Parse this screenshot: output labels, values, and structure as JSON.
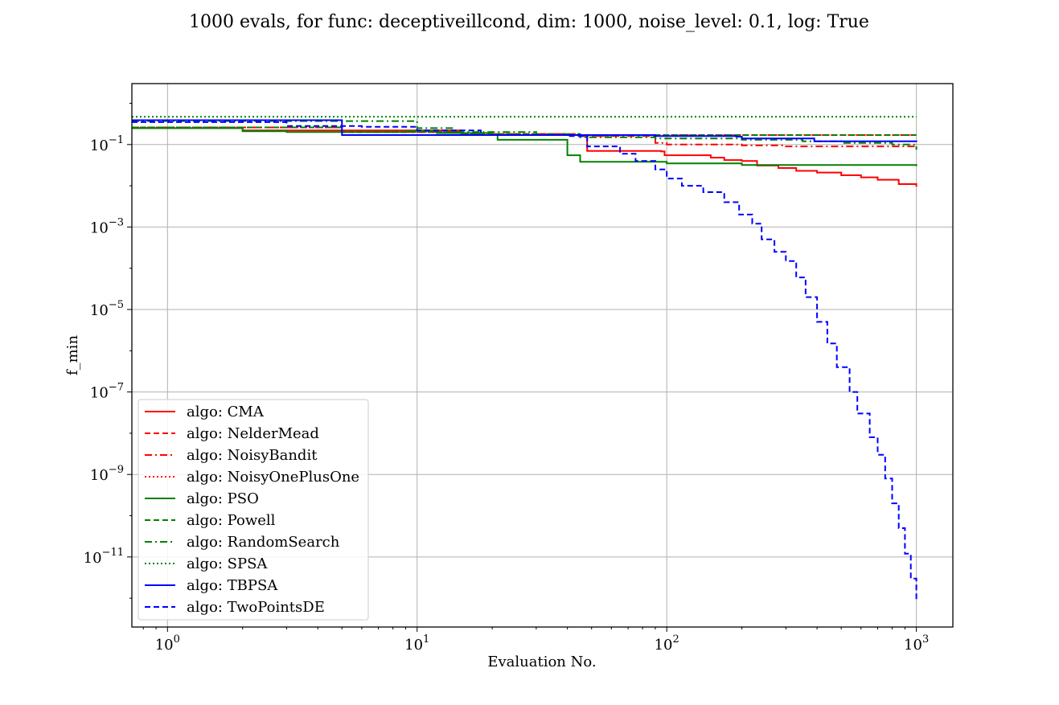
{
  "chart_data": {
    "type": "line",
    "title": "1000 evals, for func: deceptiveillcond, dim: 1000, noise_level: 0.1, log: True",
    "xlabel": "Evaluation No.",
    "ylabel": "f_min",
    "xscale": "log",
    "yscale": "log",
    "xlim": [
      0.72,
      1400
    ],
    "ylim": [
      2e-13,
      3
    ],
    "x_ticks": [
      {
        "value": 1,
        "base": "10",
        "exp": "0"
      },
      {
        "value": 10,
        "base": "10",
        "exp": "1"
      },
      {
        "value": 100,
        "base": "10",
        "exp": "2"
      },
      {
        "value": 1000,
        "base": "10",
        "exp": "3"
      }
    ],
    "y_ticks": [
      {
        "value": 1e-11,
        "base": "10",
        "exp": "−11"
      },
      {
        "value": 1e-09,
        "base": "10",
        "exp": "−9"
      },
      {
        "value": 1e-07,
        "base": "10",
        "exp": "−7"
      },
      {
        "value": 1e-05,
        "base": "10",
        "exp": "−5"
      },
      {
        "value": 0.001,
        "base": "10",
        "exp": "−3"
      },
      {
        "value": 0.1,
        "base": "10",
        "exp": "−1"
      }
    ],
    "grid": true,
    "legend_position": "lower-left",
    "series": [
      {
        "name": "algo: CMA",
        "color": "#ff0000",
        "dash": "solid",
        "points": [
          [
            0.72,
            0.25
          ],
          [
            2,
            0.22
          ],
          [
            15,
            0.17
          ],
          [
            46,
            0.16
          ],
          [
            48,
            0.07
          ],
          [
            95,
            0.068
          ],
          [
            98,
            0.055
          ],
          [
            150,
            0.048
          ],
          [
            170,
            0.042
          ],
          [
            200,
            0.04
          ],
          [
            230,
            0.031
          ],
          [
            280,
            0.027
          ],
          [
            330,
            0.023
          ],
          [
            400,
            0.021
          ],
          [
            500,
            0.018
          ],
          [
            600,
            0.016
          ],
          [
            700,
            0.014
          ],
          [
            850,
            0.011
          ],
          [
            1000,
            0.0095
          ]
        ]
      },
      {
        "name": "algo: NelderMead",
        "color": "#ff0000",
        "dash": "dashed",
        "points": [
          [
            0.72,
            0.26
          ],
          [
            5,
            0.2
          ],
          [
            15,
            0.18
          ],
          [
            40,
            0.17
          ],
          [
            50,
            0.165
          ],
          [
            60,
            0.17
          ],
          [
            1000,
            0.17
          ]
        ]
      },
      {
        "name": "algo: NoisyBandit",
        "color": "#ff0000",
        "dash": "dashdot",
        "points": [
          [
            0.72,
            0.26
          ],
          [
            5,
            0.2
          ],
          [
            15,
            0.18
          ],
          [
            45,
            0.16
          ],
          [
            90,
            0.11
          ],
          [
            100,
            0.1
          ],
          [
            200,
            0.095
          ],
          [
            300,
            0.09
          ],
          [
            1000,
            0.088
          ]
        ]
      },
      {
        "name": "algo: NoisyOnePlusOne",
        "color": "#ff0000",
        "dash": "dotted",
        "points": [
          [
            0.72,
            0.26
          ],
          [
            5,
            0.2
          ],
          [
            15,
            0.18
          ],
          [
            40,
            0.17
          ],
          [
            1000,
            0.17
          ]
        ]
      },
      {
        "name": "algo: PSO",
        "color": "#008000",
        "dash": "solid",
        "points": [
          [
            0.72,
            0.25
          ],
          [
            2,
            0.21
          ],
          [
            3,
            0.2
          ],
          [
            9,
            0.21
          ],
          [
            12,
            0.19
          ],
          [
            20,
            0.17
          ],
          [
            21,
            0.13
          ],
          [
            39,
            0.13
          ],
          [
            40,
            0.055
          ],
          [
            44,
            0.055
          ],
          [
            45,
            0.038
          ],
          [
            100,
            0.035
          ],
          [
            200,
            0.032
          ],
          [
            1000,
            0.03
          ]
        ]
      },
      {
        "name": "algo: Powell",
        "color": "#008000",
        "dash": "dashed",
        "points": [
          [
            0.72,
            0.26
          ],
          [
            5,
            0.2
          ],
          [
            15,
            0.18
          ],
          [
            30,
            0.17
          ],
          [
            1000,
            0.17
          ]
        ]
      },
      {
        "name": "algo: RandomSearch",
        "color": "#008000",
        "dash": "dashdot",
        "points": [
          [
            0.72,
            0.37
          ],
          [
            9,
            0.37
          ],
          [
            10,
            0.25
          ],
          [
            14,
            0.2
          ],
          [
            30,
            0.18
          ],
          [
            45,
            0.15
          ],
          [
            90,
            0.14
          ],
          [
            200,
            0.13
          ],
          [
            350,
            0.12
          ],
          [
            500,
            0.11
          ],
          [
            800,
            0.1
          ],
          [
            1000,
            0.075
          ]
        ]
      },
      {
        "name": "algo: SPSA",
        "color": "#008000",
        "dash": "dotted",
        "points": [
          [
            0.72,
            0.47
          ],
          [
            1000,
            0.47
          ]
        ]
      },
      {
        "name": "algo: TBPSA",
        "color": "#0000ff",
        "dash": "solid",
        "points": [
          [
            0.72,
            0.39
          ],
          [
            4,
            0.39
          ],
          [
            5,
            0.17
          ],
          [
            40,
            0.17
          ],
          [
            90,
            0.16
          ],
          [
            190,
            0.155
          ],
          [
            200,
            0.14
          ],
          [
            380,
            0.14
          ],
          [
            390,
            0.12
          ],
          [
            1000,
            0.115
          ]
        ]
      },
      {
        "name": "algo: TwoPointsDE",
        "color": "#0000ff",
        "dash": "dashed",
        "points": [
          [
            0.72,
            0.35
          ],
          [
            3,
            0.28
          ],
          [
            6,
            0.27
          ],
          [
            10,
            0.22
          ],
          [
            17,
            0.22
          ],
          [
            18,
            0.17
          ],
          [
            40,
            0.16
          ],
          [
            48,
            0.09
          ],
          [
            65,
            0.06
          ],
          [
            75,
            0.04
          ],
          [
            90,
            0.025
          ],
          [
            100,
            0.015
          ],
          [
            115,
            0.01
          ],
          [
            140,
            0.007
          ],
          [
            170,
            0.004
          ],
          [
            195,
            0.002
          ],
          [
            220,
            0.0012
          ],
          [
            240,
            0.0005
          ],
          [
            270,
            0.00025
          ],
          [
            300,
            0.00015
          ],
          [
            330,
            6e-05
          ],
          [
            360,
            2e-05
          ],
          [
            400,
            5e-06
          ],
          [
            440,
            1.5e-06
          ],
          [
            480,
            4e-07
          ],
          [
            540,
            1e-07
          ],
          [
            580,
            3e-08
          ],
          [
            650,
            8e-09
          ],
          [
            700,
            3e-09
          ],
          [
            750,
            8e-10
          ],
          [
            800,
            2e-10
          ],
          [
            850,
            5e-11
          ],
          [
            900,
            1.2e-11
          ],
          [
            950,
            3e-12
          ],
          [
            1000,
            8e-13
          ]
        ]
      }
    ]
  }
}
